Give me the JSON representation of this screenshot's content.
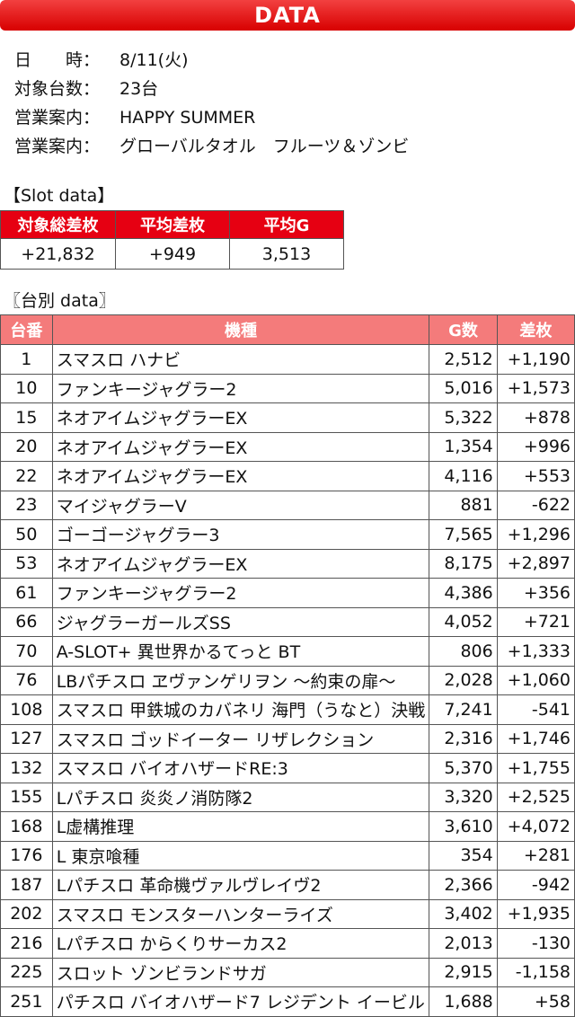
{
  "header": {
    "title": "DATA"
  },
  "info": [
    {
      "label": "日　　時：",
      "value": "8/11(火)"
    },
    {
      "label": "対象台数：",
      "value": "23台"
    },
    {
      "label": "営業案内：",
      "value": "HAPPY SUMMER"
    },
    {
      "label": "営業案内：",
      "value": "グローバルタオル　フルーツ＆ゾンビ"
    }
  ],
  "slot_section": {
    "title": "【Slot data】",
    "table": {
      "header": [
        "対象総差枚",
        "平均差枚",
        "平均G"
      ],
      "rows": [
        [
          "+21,832",
          "+949",
          "3,513"
        ]
      ]
    }
  },
  "machine_section": {
    "title": "〖台別 data〗",
    "table": {
      "header": [
        "台番",
        "機種",
        "G数",
        "差枚"
      ],
      "rows": [
        [
          "1",
          "スマスロ ハナビ",
          "2,512",
          "+1,190"
        ],
        [
          "10",
          "ファンキージャグラー2",
          "5,016",
          "+1,573"
        ],
        [
          "15",
          "ネオアイムジャグラーEX",
          "5,322",
          "+878"
        ],
        [
          "20",
          "ネオアイムジャグラーEX",
          "1,354",
          "+996"
        ],
        [
          "22",
          "ネオアイムジャグラーEX",
          "4,116",
          "+553"
        ],
        [
          "23",
          "マイジャグラーV",
          "881",
          "-622"
        ],
        [
          "50",
          "ゴーゴージャグラー3",
          "7,565",
          "+1,296"
        ],
        [
          "53",
          "ネオアイムジャグラーEX",
          "8,175",
          "+2,897"
        ],
        [
          "61",
          "ファンキージャグラー2",
          "4,386",
          "+356"
        ],
        [
          "66",
          "ジャグラーガールズSS",
          "4,052",
          "+721"
        ],
        [
          "70",
          "A-SLOT+ 異世界かるてっと BT",
          "806",
          "+1,333"
        ],
        [
          "76",
          "LBパチスロ ヱヴァンゲリヲン ～約束の扉～",
          "2,028",
          "+1,060"
        ],
        [
          "108",
          "スマスロ 甲鉄城のカバネリ 海門（うなと）決戦",
          "7,241",
          "-541"
        ],
        [
          "127",
          "スマスロ ゴッドイーター リザレクション",
          "2,316",
          "+1,746"
        ],
        [
          "132",
          "スマスロ バイオハザードRE:3",
          "5,370",
          "+1,755"
        ],
        [
          "155",
          "Lパチスロ 炎炎ノ消防隊2",
          "3,320",
          "+2,525"
        ],
        [
          "168",
          "L虚構推理",
          "3,610",
          "+4,072"
        ],
        [
          "176",
          "L 東京喰種",
          "354",
          "+281"
        ],
        [
          "187",
          "Lパチスロ 革命機ヴァルヴレイヴ2",
          "2,366",
          "-942"
        ],
        [
          "202",
          "スマスロ モンスターハンターライズ",
          "3,402",
          "+1,935"
        ],
        [
          "216",
          "Lパチスロ からくりサーカス2",
          "2,013",
          "-130"
        ],
        [
          "225",
          "スロット ゾンビランドサガ",
          "2,915",
          "-1,158"
        ],
        [
          "251",
          "パチスロ バイオハザード7 レジデント イービル",
          "1,688",
          "+58"
        ]
      ]
    }
  }
}
